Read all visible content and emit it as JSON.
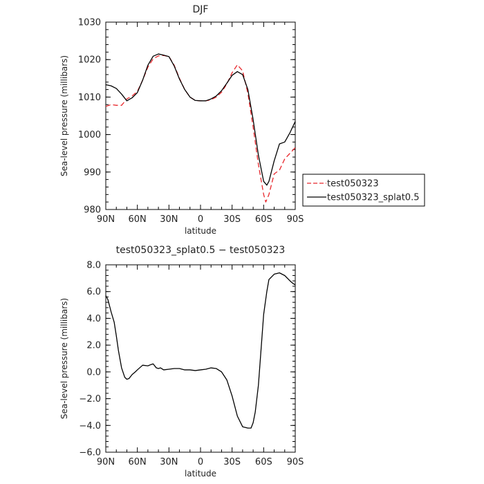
{
  "chart_data": [
    {
      "type": "line",
      "title": "DJF",
      "xlabel": "latitude",
      "ylabel": "Sea-level pressure (millibars)",
      "xlim": [
        90,
        -90
      ],
      "ylim": [
        980,
        1030
      ],
      "xticks": [
        {
          "value": 90,
          "label": "90N"
        },
        {
          "value": 60,
          "label": "60N"
        },
        {
          "value": 30,
          "label": "30N"
        },
        {
          "value": 0,
          "label": "0"
        },
        {
          "value": -30,
          "label": "30S"
        },
        {
          "value": -60,
          "label": "60S"
        },
        {
          "value": -90,
          "label": "90S"
        }
      ],
      "yticks": [
        {
          "value": 980,
          "label": "980"
        },
        {
          "value": 990,
          "label": "990"
        },
        {
          "value": 1000,
          "label": "1000"
        },
        {
          "value": 1010,
          "label": "1010"
        },
        {
          "value": 1020,
          "label": "1020"
        },
        {
          "value": 1030,
          "label": "1030"
        }
      ],
      "legend_position": "right",
      "series": [
        {
          "name": "test050323",
          "color": "#e8262b",
          "dash": "dashed",
          "x": [
            90,
            85,
            80,
            75,
            70,
            65,
            60,
            55,
            50,
            45,
            40,
            35,
            30,
            25,
            20,
            15,
            10,
            5,
            0,
            -5,
            -10,
            -15,
            -20,
            -25,
            -30,
            -35,
            -40,
            -45,
            -50,
            -55,
            -60,
            -62,
            -65,
            -70,
            -75,
            -80,
            -85,
            -90
          ],
          "y": [
            1007.5,
            1008.0,
            1007.8,
            1007.8,
            1009.5,
            1010.3,
            1011.5,
            1014.5,
            1018.0,
            1020.2,
            1021.0,
            1021.1,
            1020.8,
            1018.5,
            1015.0,
            1012.0,
            1010.0,
            1009.1,
            1009.0,
            1009.0,
            1009.3,
            1010.0,
            1011.3,
            1013.5,
            1016.5,
            1018.6,
            1017.0,
            1011.0,
            1002.0,
            992.0,
            984.0,
            982.0,
            984.0,
            989.5,
            990.5,
            993.5,
            995.0,
            996.5
          ]
        },
        {
          "name": "test050323_splat0.5",
          "color": "#000000",
          "dash": "solid",
          "x": [
            90,
            85,
            80,
            75,
            70,
            65,
            60,
            55,
            50,
            45,
            40,
            35,
            30,
            25,
            20,
            15,
            10,
            5,
            0,
            -5,
            -10,
            -15,
            -20,
            -25,
            -30,
            -35,
            -40,
            -45,
            -50,
            -55,
            -60,
            -63,
            -65,
            -70,
            -75,
            -80,
            -85,
            -90
          ],
          "y": [
            1013.3,
            1013.0,
            1012.3,
            1010.8,
            1009.0,
            1009.8,
            1011.2,
            1014.5,
            1018.5,
            1020.9,
            1021.5,
            1021.2,
            1020.8,
            1018.3,
            1014.8,
            1012.0,
            1010.0,
            1009.1,
            1009.0,
            1009.0,
            1009.5,
            1010.3,
            1011.7,
            1013.7,
            1015.8,
            1016.8,
            1016.0,
            1012.0,
            1004.0,
            994.5,
            987.5,
            986.5,
            987.5,
            993.0,
            997.5,
            998.0,
            1000.5,
            1003.5
          ]
        }
      ]
    },
    {
      "type": "line",
      "title": "test050323_splat0.5 − test050323",
      "xlabel": "latitude",
      "ylabel": "Sea-level pressure (millibars)",
      "xlim": [
        90,
        -90
      ],
      "ylim": [
        -6,
        8
      ],
      "xticks": [
        {
          "value": 90,
          "label": "90N"
        },
        {
          "value": 60,
          "label": "60N"
        },
        {
          "value": 30,
          "label": "30N"
        },
        {
          "value": 0,
          "label": "0"
        },
        {
          "value": -30,
          "label": "30S"
        },
        {
          "value": -60,
          "label": "60S"
        },
        {
          "value": -90,
          "label": "90S"
        }
      ],
      "yticks": [
        {
          "value": -6,
          "label": "−6.0"
        },
        {
          "value": -4,
          "label": "−4.0"
        },
        {
          "value": -2,
          "label": "−2.0"
        },
        {
          "value": 0,
          "label": "0.0"
        },
        {
          "value": 2,
          "label": "2.0"
        },
        {
          "value": 4,
          "label": "4.0"
        },
        {
          "value": 6,
          "label": "6.0"
        },
        {
          "value": 8,
          "label": "8.0"
        }
      ],
      "series": [
        {
          "color": "#000000",
          "dash": "solid",
          "x": [
            90,
            88,
            85,
            82,
            80,
            78,
            75,
            72,
            70,
            68,
            65,
            62,
            60,
            55,
            50,
            47,
            45,
            42,
            40,
            38,
            35,
            30,
            25,
            20,
            15,
            10,
            5,
            0,
            -5,
            -10,
            -15,
            -20,
            -25,
            -30,
            -35,
            -40,
            -45,
            -48,
            -50,
            -52,
            -55,
            -60,
            -63,
            -65,
            -70,
            -75,
            -80,
            -85,
            -88,
            -90
          ],
          "y": [
            5.7,
            5.4,
            4.5,
            3.7,
            2.7,
            1.6,
            0.3,
            -0.4,
            -0.55,
            -0.5,
            -0.2,
            0.0,
            0.15,
            0.5,
            0.45,
            0.55,
            0.6,
            0.3,
            0.25,
            0.3,
            0.15,
            0.2,
            0.25,
            0.25,
            0.15,
            0.15,
            0.1,
            0.15,
            0.2,
            0.3,
            0.25,
            0.0,
            -0.6,
            -1.8,
            -3.3,
            -4.1,
            -4.2,
            -4.2,
            -3.8,
            -3.0,
            -1.0,
            4.3,
            6.0,
            6.9,
            7.3,
            7.4,
            7.2,
            6.8,
            6.6,
            6.5
          ]
        }
      ]
    }
  ]
}
